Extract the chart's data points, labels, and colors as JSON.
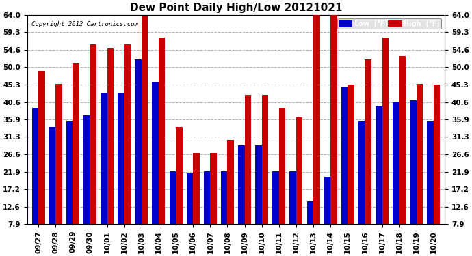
{
  "title": "Dew Point Daily High/Low 20121021",
  "copyright": "Copyright 2012 Cartronics.com",
  "categories": [
    "09/27",
    "09/28",
    "09/29",
    "09/30",
    "10/01",
    "10/02",
    "10/03",
    "10/04",
    "10/05",
    "10/06",
    "10/07",
    "10/08",
    "10/09",
    "10/10",
    "10/11",
    "10/12",
    "10/13",
    "10/14",
    "10/15",
    "10/16",
    "10/17",
    "10/18",
    "10/19",
    "10/20"
  ],
  "low_values": [
    39.0,
    34.0,
    35.5,
    37.0,
    43.0,
    43.0,
    52.0,
    46.0,
    22.0,
    21.5,
    22.0,
    22.0,
    29.0,
    29.0,
    22.0,
    22.0,
    14.0,
    20.5,
    44.5,
    35.5,
    39.5,
    40.5,
    41.0,
    35.5
  ],
  "high_values": [
    49.0,
    45.5,
    51.0,
    56.0,
    55.0,
    56.0,
    63.5,
    58.0,
    34.0,
    27.0,
    27.0,
    30.5,
    42.5,
    42.5,
    39.0,
    36.5,
    64.0,
    64.0,
    45.3,
    52.0,
    58.0,
    53.0,
    45.5,
    45.3
  ],
  "ylim_min": 7.9,
  "ylim_max": 64.0,
  "yticks": [
    7.9,
    12.6,
    17.2,
    21.9,
    26.6,
    31.3,
    35.9,
    40.6,
    45.3,
    50.0,
    54.6,
    59.3,
    64.0
  ],
  "low_color": "#0000cc",
  "high_color": "#cc0000",
  "bg_color": "#ffffff",
  "plot_bg_color": "#ffffff",
  "grid_color": "#b0b0b0",
  "title_fontsize": 11,
  "tick_fontsize": 7.5,
  "bar_width": 0.38
}
